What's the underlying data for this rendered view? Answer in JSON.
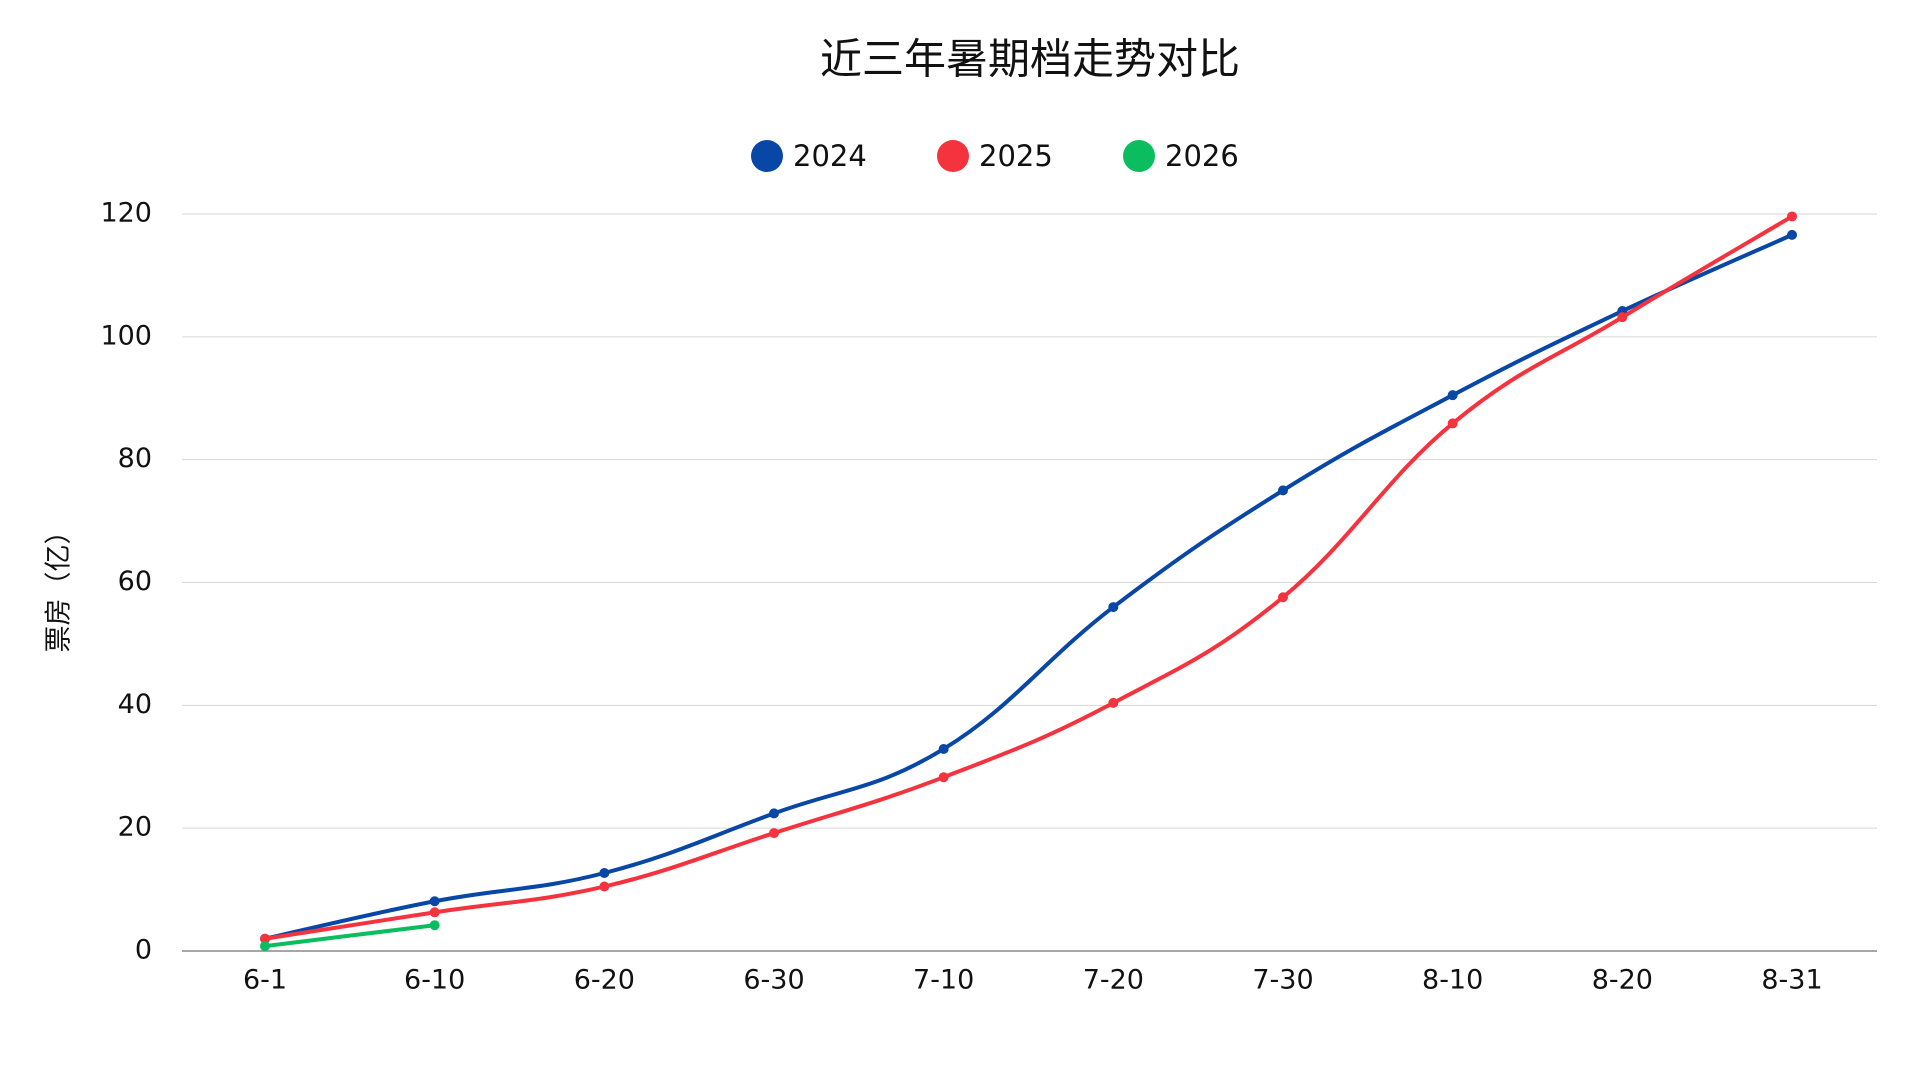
{
  "chart_data": {
    "type": "line",
    "title": "近三年暑期档走势对比",
    "y_label": "票房（亿）",
    "categories": [
      "6-1",
      "6-10",
      "6-20",
      "6-30",
      "7-10",
      "7-20",
      "7-30",
      "8-10",
      "8-20",
      "8-31"
    ],
    "series": [
      {
        "name": "2024",
        "color": "#0847a6",
        "values": [
          2.0,
          8.1,
          12.7,
          22.4,
          32.9,
          56.0,
          75.0,
          90.5,
          104.2,
          116.6
        ]
      },
      {
        "name": "2025",
        "color": "#f5333f",
        "values": [
          2.0,
          6.3,
          10.5,
          19.2,
          28.3,
          40.4,
          57.6,
          85.9,
          103.2,
          119.6
        ]
      },
      {
        "name": "2026",
        "color": "#0bbd5e",
        "values": [
          0.8,
          4.2,
          null,
          null,
          null,
          null,
          null,
          null,
          null,
          null
        ]
      }
    ],
    "ylim": [
      0,
      120
    ],
    "yticks": [
      0,
      20,
      40,
      60,
      80,
      100,
      120
    ],
    "grid": true,
    "legend": "top"
  }
}
